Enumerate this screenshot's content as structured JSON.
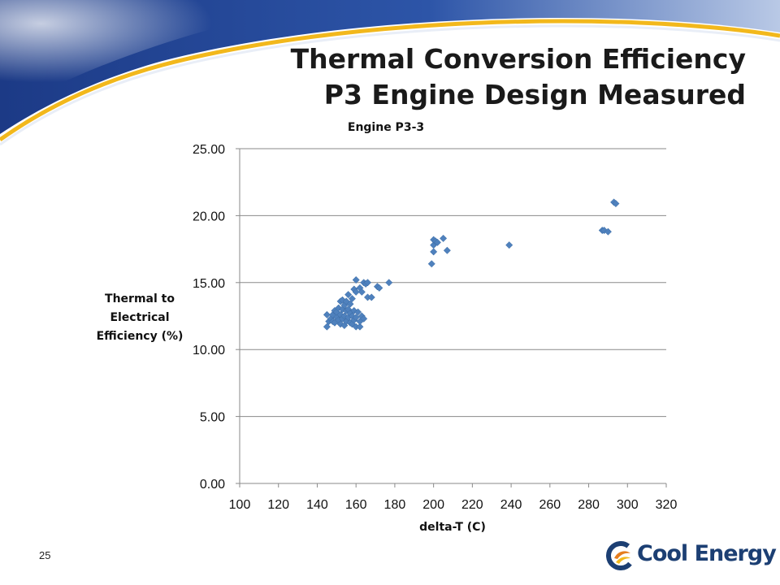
{
  "slide": {
    "title_line1": "Thermal Conversion Efficiency",
    "title_line2": "P3 Engine Design Measured",
    "page_number": "25",
    "logo_text": "Cool Energy"
  },
  "colors": {
    "banner_blue": "#1f3f8f",
    "banner_light": "#dfe7f5",
    "banner_gold": "#f2b81c",
    "marker": "#4f81bd",
    "logo_blue": "#1c3f73",
    "logo_orange": "#e57d1f"
  },
  "chart_data": {
    "type": "scatter",
    "title": "Engine P3-3",
    "xlabel": "delta-T (C)",
    "ylabel": [
      "Thermal to",
      "Electrical",
      "Efficiency (%)"
    ],
    "xlim": [
      100,
      320
    ],
    "ylim": [
      0,
      25
    ],
    "xticks": [
      "100",
      "120",
      "140",
      "160",
      "180",
      "200",
      "220",
      "240",
      "260",
      "280",
      "300",
      "320"
    ],
    "yticks": [
      "0.00",
      "5.00",
      "10.00",
      "15.00",
      "20.00",
      "25.00"
    ],
    "grid": "horizontal",
    "legend": "none",
    "marker": "diamond",
    "points": [
      [
        145,
        11.7
      ],
      [
        145,
        12.6
      ],
      [
        146,
        12.1
      ],
      [
        147,
        12.3
      ],
      [
        148,
        12.6
      ],
      [
        148,
        12.1
      ],
      [
        149,
        12.9
      ],
      [
        149,
        12.0
      ],
      [
        150,
        12.4
      ],
      [
        150,
        12.8
      ],
      [
        151,
        12.2
      ],
      [
        151,
        13.1
      ],
      [
        152,
        12.6
      ],
      [
        152,
        11.9
      ],
      [
        152,
        13.6
      ],
      [
        153,
        12.3
      ],
      [
        153,
        13.0
      ],
      [
        153,
        13.7
      ],
      [
        154,
        12.5
      ],
      [
        154,
        11.8
      ],
      [
        154,
        13.3
      ],
      [
        155,
        12.9
      ],
      [
        155,
        12.1
      ],
      [
        155,
        13.6
      ],
      [
        156,
        12.4
      ],
      [
        156,
        14.1
      ],
      [
        156,
        13.0
      ],
      [
        157,
        12.7
      ],
      [
        157,
        12.0
      ],
      [
        157,
        13.4
      ],
      [
        158,
        11.9
      ],
      [
        158,
        12.5
      ],
      [
        158,
        13.8
      ],
      [
        159,
        12.2
      ],
      [
        159,
        12.9
      ],
      [
        159,
        14.5
      ],
      [
        160,
        11.7
      ],
      [
        160,
        12.4
      ],
      [
        160,
        15.2
      ],
      [
        160,
        14.3
      ],
      [
        161,
        12.8
      ],
      [
        162,
        11.7
      ],
      [
        162,
        12.1
      ],
      [
        162,
        14.6
      ],
      [
        163,
        12.5
      ],
      [
        163,
        14.3
      ],
      [
        164,
        12.3
      ],
      [
        164,
        15.0
      ],
      [
        165,
        14.9
      ],
      [
        166,
        15.0
      ],
      [
        166,
        13.9
      ],
      [
        168,
        13.9
      ],
      [
        171,
        14.7
      ],
      [
        172,
        14.6
      ],
      [
        177,
        15.0
      ],
      [
        199,
        16.4
      ],
      [
        200,
        17.3
      ],
      [
        200,
        17.8
      ],
      [
        200,
        18.2
      ],
      [
        201,
        18.1
      ],
      [
        202,
        18.0
      ],
      [
        205,
        18.3
      ],
      [
        207,
        17.4
      ],
      [
        239,
        17.8
      ],
      [
        287,
        18.9
      ],
      [
        288,
        18.9
      ],
      [
        290,
        18.8
      ],
      [
        293,
        21.0
      ],
      [
        294,
        20.9
      ]
    ]
  }
}
